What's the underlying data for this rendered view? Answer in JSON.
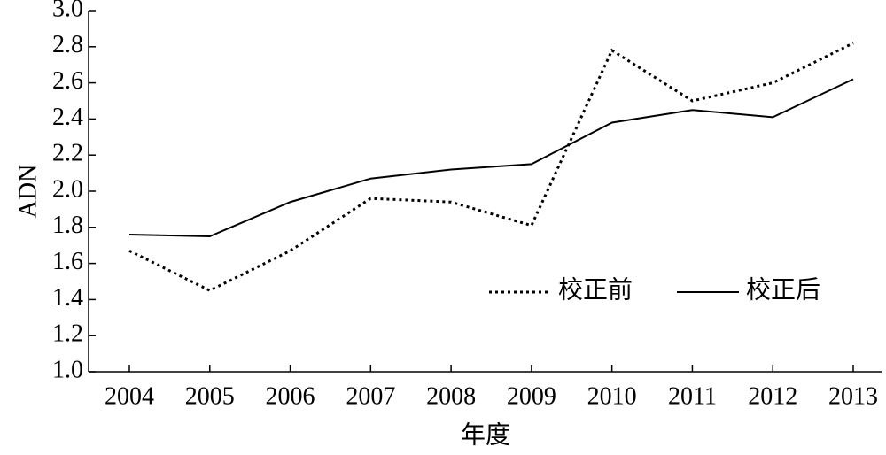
{
  "chart_data": {
    "type": "line",
    "x_label": "年度",
    "y_label": "ADN",
    "categories": [
      "2004",
      "2005",
      "2006",
      "2007",
      "2008",
      "2009",
      "2010",
      "2011",
      "2012",
      "2013"
    ],
    "series": [
      {
        "name": "校正前",
        "color": "#000000",
        "style": "dotted",
        "values": [
          1.67,
          1.45,
          1.67,
          1.96,
          1.94,
          1.81,
          2.78,
          2.5,
          2.6,
          2.82
        ]
      },
      {
        "name": "校正后",
        "color": "#000000",
        "style": "solid",
        "values": [
          1.76,
          1.75,
          1.94,
          2.07,
          2.12,
          2.15,
          2.38,
          2.45,
          2.41,
          2.62
        ]
      }
    ],
    "ylim": [
      1.0,
      3.0
    ],
    "yticks": [
      {
        "value": 1.0,
        "label": "1.0"
      },
      {
        "value": 1.2,
        "label": "1.2"
      },
      {
        "value": 1.4,
        "label": "1.4"
      },
      {
        "value": 1.6,
        "label": "1.6"
      },
      {
        "value": 1.8,
        "label": "1.8"
      },
      {
        "value": 2.0,
        "label": "2.0"
      },
      {
        "value": 2.2,
        "label": "2.2"
      },
      {
        "value": 2.4,
        "label": "2.4"
      },
      {
        "value": 2.6,
        "label": "2.6"
      },
      {
        "value": 2.8,
        "label": "2.8"
      },
      {
        "value": 3.0,
        "label": "3.0"
      }
    ],
    "grid": false,
    "legend": "right"
  }
}
